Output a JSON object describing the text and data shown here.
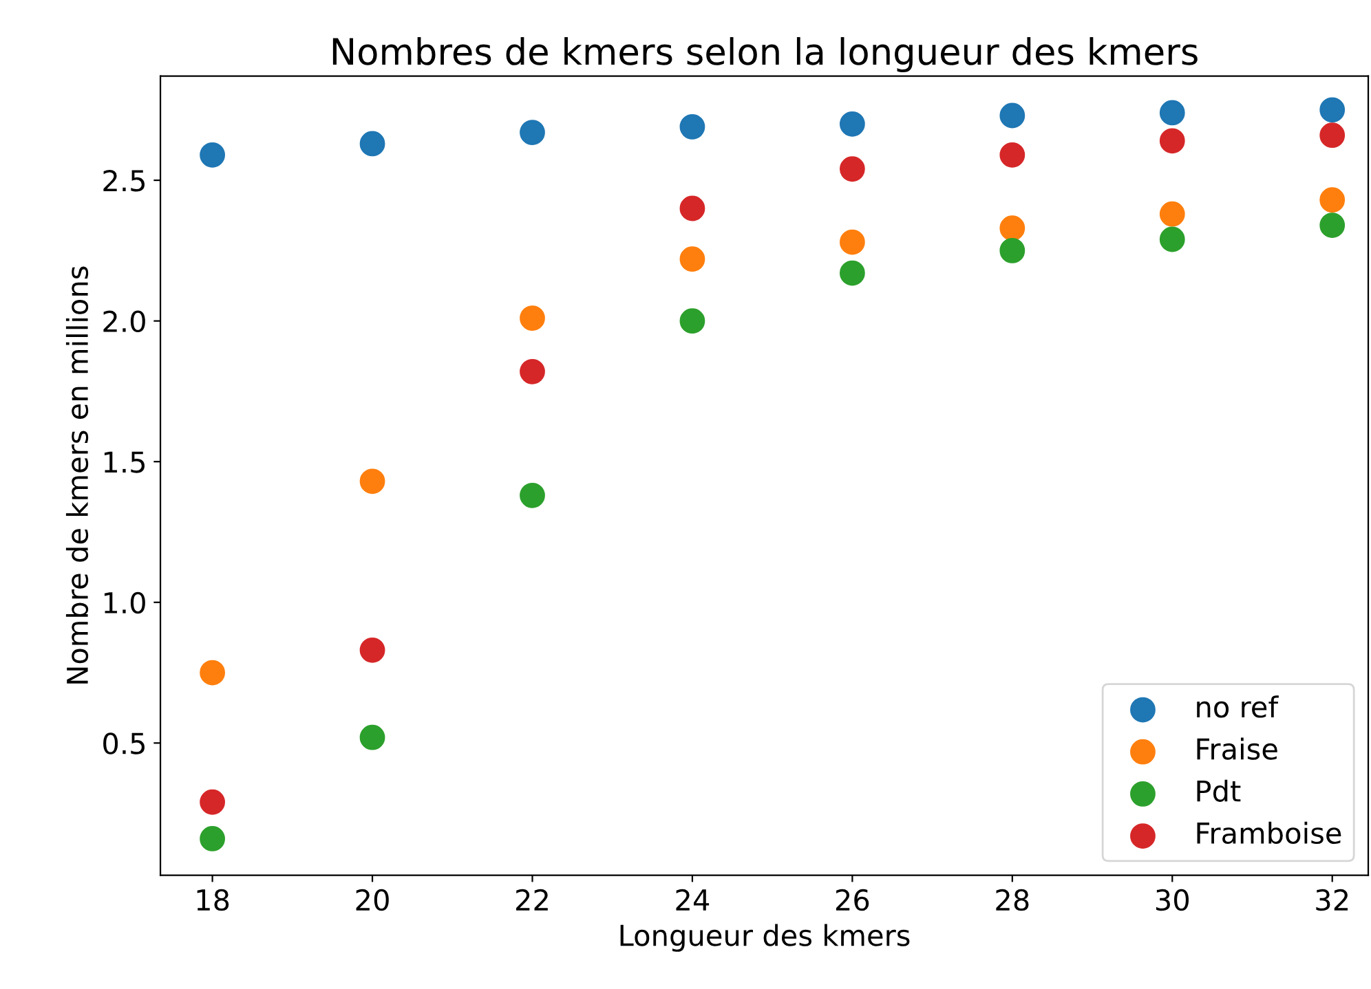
{
  "chart_data": {
    "type": "scatter",
    "title": "Nombres de kmers selon la longueur des kmers",
    "xlabel": "Longueur des kmers",
    "ylabel": "Nombre de kmers en millions",
    "x": [
      18,
      20,
      22,
      24,
      26,
      28,
      30,
      32
    ],
    "series": [
      {
        "name": "no ref",
        "color": "#1f77b4",
        "values": [
          2.59,
          2.63,
          2.67,
          2.69,
          2.7,
          2.73,
          2.74,
          2.75
        ]
      },
      {
        "name": "Fraise",
        "color": "#ff7f0e",
        "values": [
          0.75,
          1.43,
          2.01,
          2.22,
          2.28,
          2.33,
          2.38,
          2.43
        ]
      },
      {
        "name": "Pdt",
        "color": "#2ca02c",
        "values": [
          0.16,
          0.52,
          1.38,
          2.0,
          2.17,
          2.25,
          2.29,
          2.34
        ]
      },
      {
        "name": "Framboise",
        "color": "#d62728",
        "values": [
          0.29,
          0.83,
          1.82,
          2.4,
          2.54,
          2.59,
          2.64,
          2.66
        ]
      }
    ],
    "xlim": [
      17.35,
      32.45
    ],
    "ylim": [
      0.03,
      2.87
    ],
    "xticks": [
      18,
      20,
      22,
      24,
      26,
      28,
      30,
      32
    ],
    "yticks": [
      {
        "value": 0.5,
        "label": "0.5"
      },
      {
        "value": 1.0,
        "label": "1.0"
      },
      {
        "value": 1.5,
        "label": "1.5"
      },
      {
        "value": 2.0,
        "label": "2.0"
      },
      {
        "value": 2.5,
        "label": "2.5"
      }
    ],
    "marker": "circle",
    "legend": "lower right",
    "grid": false
  }
}
